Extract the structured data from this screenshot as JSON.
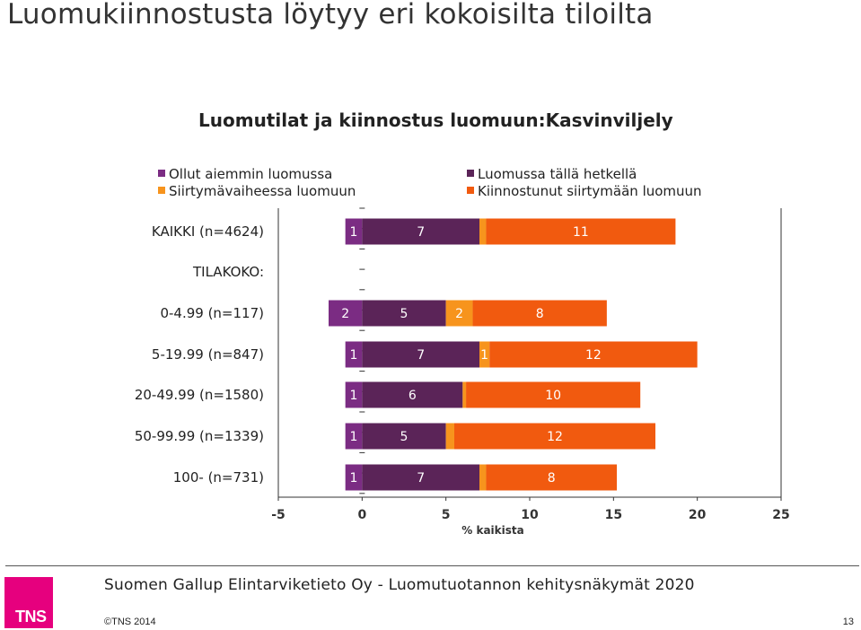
{
  "slide": {
    "title": "Luomukiinnostusta löytyy eri kokoisilta tiloilta",
    "footer": "Suomen Gallup Elintarviketieto Oy - Luomutuotannon kehitysnäkymät 2020",
    "copyright": "©TNS 2014",
    "page_number": "13",
    "logo_text": "TNS"
  },
  "colors": {
    "ollut": "#7b2c83",
    "luomussa": "#5b2458",
    "siirtyma": "#f7941d",
    "kiinnostunut": "#f15a0f",
    "logo": "#e6007e"
  },
  "chart_data": {
    "type": "bar",
    "orientation": "horizontal",
    "stacked": true,
    "title": "Luomutilat ja kiinnostus luomuun:Kasvinviljely",
    "xlabel": "% kaikista",
    "xlim": [
      -5,
      25
    ],
    "xticks": [
      -5,
      0,
      5,
      10,
      15,
      20,
      25
    ],
    "legend_position": "top",
    "section_label": "TILAKOKO:",
    "categories": [
      "KAIKKI (n=4624)",
      "0-4.99 (n=117)",
      "5-19.99 (n=847)",
      "20-49.99 (n=1580)",
      "50-99.99 (n=1339)",
      "100- (n=731)"
    ],
    "series": [
      {
        "name": "Ollut aiemmin luomussa",
        "color_key": "ollut",
        "direction": "negative",
        "values": [
          1,
          2,
          1,
          1,
          1,
          1
        ],
        "labels": [
          "1",
          "2",
          "1",
          "1",
          "1",
          "1"
        ]
      },
      {
        "name": "Luomussa tällä hetkellä",
        "color_key": "luomussa",
        "values": [
          7,
          5,
          7,
          6,
          5,
          7
        ],
        "labels": [
          "7",
          "5",
          "7",
          "6",
          "5",
          "7"
        ]
      },
      {
        "name": "Siirtymävaiheessa luomuun",
        "color_key": "siirtyma",
        "values": [
          0.4,
          1.6,
          0.6,
          0.2,
          0.5,
          0.4
        ],
        "labels": [
          "",
          "2",
          "1",
          "",
          "",
          ""
        ]
      },
      {
        "name": "Kiinnostunut siirtymään luomuun",
        "color_key": "kiinnostunut",
        "values": [
          11.3,
          8.0,
          12.4,
          10.4,
          12.0,
          7.8
        ],
        "labels": [
          "11",
          "8",
          "12",
          "10",
          "12",
          "8"
        ]
      }
    ]
  }
}
